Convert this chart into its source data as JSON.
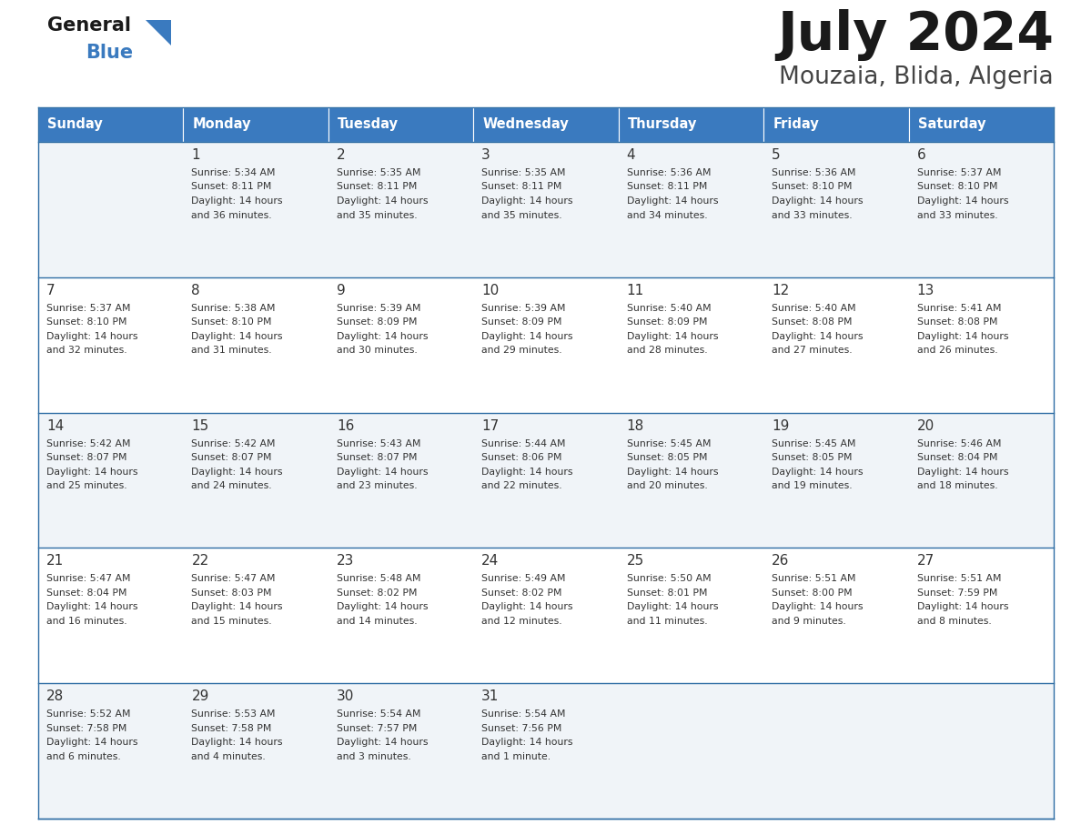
{
  "title": "July 2024",
  "subtitle": "Mouzaia, Blida, Algeria",
  "header_bg_color": "#3a7abf",
  "header_text_color": "#ffffff",
  "row_colors": [
    "#f0f4f8",
    "#ffffff"
  ],
  "border_color": "#2e6da4",
  "text_color": "#333333",
  "days_of_week": [
    "Sunday",
    "Monday",
    "Tuesday",
    "Wednesday",
    "Thursday",
    "Friday",
    "Saturday"
  ],
  "calendar": [
    [
      {
        "day": "",
        "sunrise": "",
        "sunset": "",
        "daylight": ""
      },
      {
        "day": "1",
        "sunrise": "5:34 AM",
        "sunset": "8:11 PM",
        "daylight": "14 hours\nand 36 minutes."
      },
      {
        "day": "2",
        "sunrise": "5:35 AM",
        "sunset": "8:11 PM",
        "daylight": "14 hours\nand 35 minutes."
      },
      {
        "day": "3",
        "sunrise": "5:35 AM",
        "sunset": "8:11 PM",
        "daylight": "14 hours\nand 35 minutes."
      },
      {
        "day": "4",
        "sunrise": "5:36 AM",
        "sunset": "8:11 PM",
        "daylight": "14 hours\nand 34 minutes."
      },
      {
        "day": "5",
        "sunrise": "5:36 AM",
        "sunset": "8:10 PM",
        "daylight": "14 hours\nand 33 minutes."
      },
      {
        "day": "6",
        "sunrise": "5:37 AM",
        "sunset": "8:10 PM",
        "daylight": "14 hours\nand 33 minutes."
      }
    ],
    [
      {
        "day": "7",
        "sunrise": "5:37 AM",
        "sunset": "8:10 PM",
        "daylight": "14 hours\nand 32 minutes."
      },
      {
        "day": "8",
        "sunrise": "5:38 AM",
        "sunset": "8:10 PM",
        "daylight": "14 hours\nand 31 minutes."
      },
      {
        "day": "9",
        "sunrise": "5:39 AM",
        "sunset": "8:09 PM",
        "daylight": "14 hours\nand 30 minutes."
      },
      {
        "day": "10",
        "sunrise": "5:39 AM",
        "sunset": "8:09 PM",
        "daylight": "14 hours\nand 29 minutes."
      },
      {
        "day": "11",
        "sunrise": "5:40 AM",
        "sunset": "8:09 PM",
        "daylight": "14 hours\nand 28 minutes."
      },
      {
        "day": "12",
        "sunrise": "5:40 AM",
        "sunset": "8:08 PM",
        "daylight": "14 hours\nand 27 minutes."
      },
      {
        "day": "13",
        "sunrise": "5:41 AM",
        "sunset": "8:08 PM",
        "daylight": "14 hours\nand 26 minutes."
      }
    ],
    [
      {
        "day": "14",
        "sunrise": "5:42 AM",
        "sunset": "8:07 PM",
        "daylight": "14 hours\nand 25 minutes."
      },
      {
        "day": "15",
        "sunrise": "5:42 AM",
        "sunset": "8:07 PM",
        "daylight": "14 hours\nand 24 minutes."
      },
      {
        "day": "16",
        "sunrise": "5:43 AM",
        "sunset": "8:07 PM",
        "daylight": "14 hours\nand 23 minutes."
      },
      {
        "day": "17",
        "sunrise": "5:44 AM",
        "sunset": "8:06 PM",
        "daylight": "14 hours\nand 22 minutes."
      },
      {
        "day": "18",
        "sunrise": "5:45 AM",
        "sunset": "8:05 PM",
        "daylight": "14 hours\nand 20 minutes."
      },
      {
        "day": "19",
        "sunrise": "5:45 AM",
        "sunset": "8:05 PM",
        "daylight": "14 hours\nand 19 minutes."
      },
      {
        "day": "20",
        "sunrise": "5:46 AM",
        "sunset": "8:04 PM",
        "daylight": "14 hours\nand 18 minutes."
      }
    ],
    [
      {
        "day": "21",
        "sunrise": "5:47 AM",
        "sunset": "8:04 PM",
        "daylight": "14 hours\nand 16 minutes."
      },
      {
        "day": "22",
        "sunrise": "5:47 AM",
        "sunset": "8:03 PM",
        "daylight": "14 hours\nand 15 minutes."
      },
      {
        "day": "23",
        "sunrise": "5:48 AM",
        "sunset": "8:02 PM",
        "daylight": "14 hours\nand 14 minutes."
      },
      {
        "day": "24",
        "sunrise": "5:49 AM",
        "sunset": "8:02 PM",
        "daylight": "14 hours\nand 12 minutes."
      },
      {
        "day": "25",
        "sunrise": "5:50 AM",
        "sunset": "8:01 PM",
        "daylight": "14 hours\nand 11 minutes."
      },
      {
        "day": "26",
        "sunrise": "5:51 AM",
        "sunset": "8:00 PM",
        "daylight": "14 hours\nand 9 minutes."
      },
      {
        "day": "27",
        "sunrise": "5:51 AM",
        "sunset": "7:59 PM",
        "daylight": "14 hours\nand 8 minutes."
      }
    ],
    [
      {
        "day": "28",
        "sunrise": "5:52 AM",
        "sunset": "7:58 PM",
        "daylight": "14 hours\nand 6 minutes."
      },
      {
        "day": "29",
        "sunrise": "5:53 AM",
        "sunset": "7:58 PM",
        "daylight": "14 hours\nand 4 minutes."
      },
      {
        "day": "30",
        "sunrise": "5:54 AM",
        "sunset": "7:57 PM",
        "daylight": "14 hours\nand 3 minutes."
      },
      {
        "day": "31",
        "sunrise": "5:54 AM",
        "sunset": "7:56 PM",
        "daylight": "14 hours\nand 1 minute."
      },
      {
        "day": "",
        "sunrise": "",
        "sunset": "",
        "daylight": ""
      },
      {
        "day": "",
        "sunrise": "",
        "sunset": "",
        "daylight": ""
      },
      {
        "day": "",
        "sunrise": "",
        "sunset": "",
        "daylight": ""
      }
    ]
  ],
  "fig_width": 11.88,
  "fig_height": 9.18,
  "dpi": 100
}
